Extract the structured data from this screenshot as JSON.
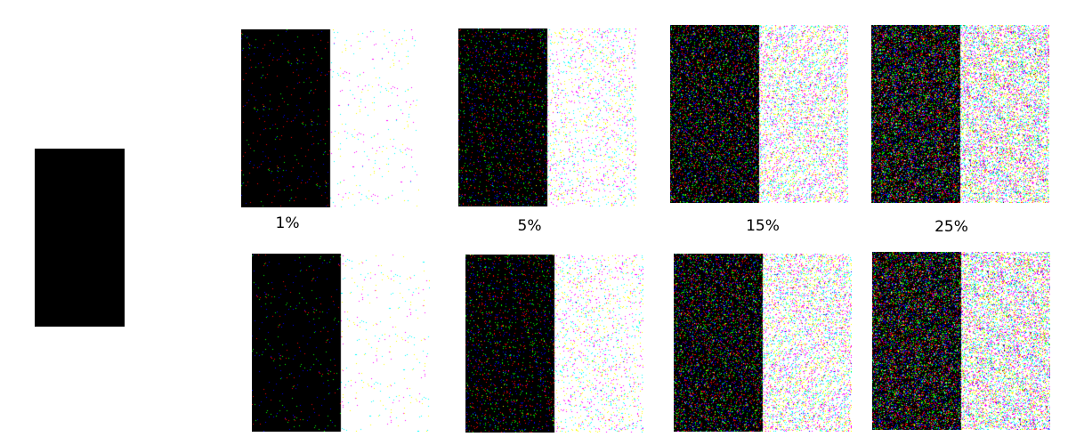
{
  "original": {
    "left_color": "#000000"
  },
  "noise_levels": [
    {
      "label": "1%",
      "fraction": 0.01
    },
    {
      "label": "5%",
      "fraction": 0.05
    },
    {
      "label": "15%",
      "fraction": 0.15
    },
    {
      "label": "25%",
      "fraction": 0.25
    }
  ],
  "rows": [
    {
      "name": "top"
    },
    {
      "name": "bottom"
    }
  ],
  "colors": {
    "dark": "#000000",
    "light": "#ffffff"
  }
}
